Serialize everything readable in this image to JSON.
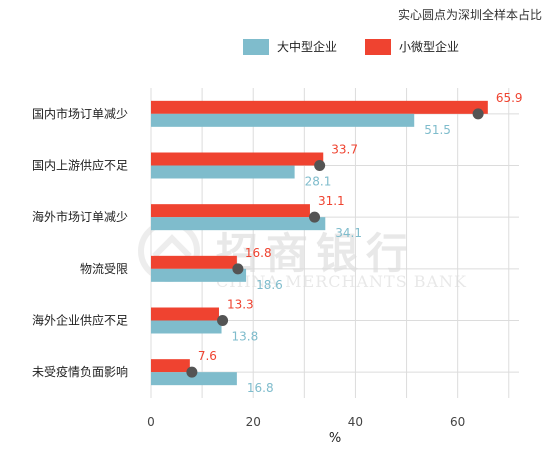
{
  "note": "实心圆点为深圳全样本占比",
  "legend": {
    "large_label": "大中型企业",
    "small_label": "小微型企业"
  },
  "colors": {
    "large": "#7fbccc",
    "small": "#ef4330",
    "dot": "#545454",
    "grid": "#dcdcdc"
  },
  "watermark": {
    "cn": "招商银行",
    "en": "CHINA MERCHANTS BANK"
  },
  "chart_data": {
    "type": "bar",
    "orientation": "horizontal",
    "categories": [
      "国内市场订单减少",
      "国内上游供应不足",
      "海外市场订单减少",
      "物流受限",
      "海外企业供应不足",
      "未受疫情负面影响"
    ],
    "series": [
      {
        "name": "小微型企业",
        "values": [
          65.9,
          33.7,
          31.1,
          16.8,
          13.3,
          7.6
        ]
      },
      {
        "name": "大中型企业",
        "values": [
          51.5,
          28.1,
          34.1,
          18.6,
          13.8,
          16.8
        ]
      }
    ],
    "dots": [
      64,
      33,
      32,
      17,
      14,
      8
    ],
    "xlabel": "%",
    "xlim": [
      0,
      72
    ],
    "xticks": [
      0,
      20,
      40,
      60
    ],
    "grid": true,
    "legend_position": "top"
  }
}
